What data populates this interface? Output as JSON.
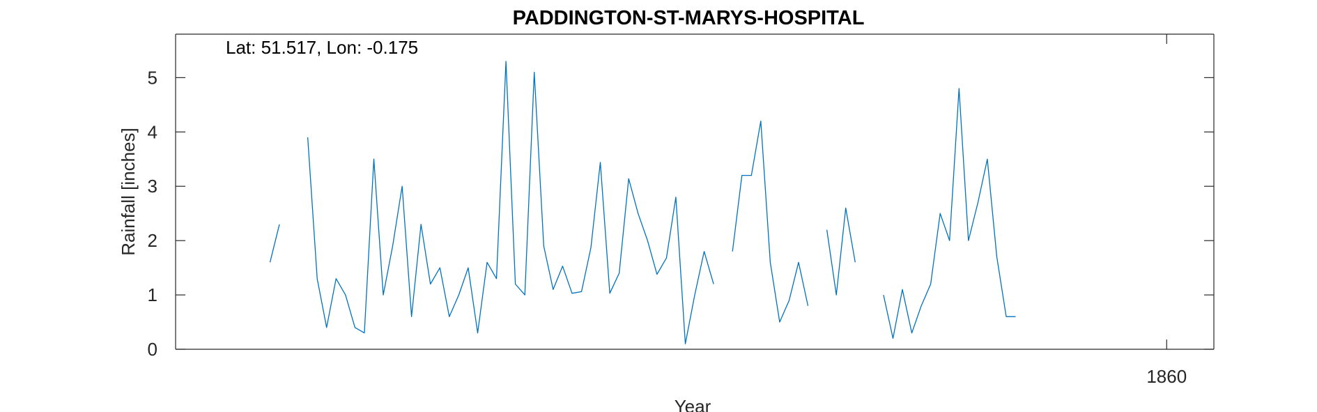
{
  "chart_data": {
    "type": "line",
    "title": "PADDINGTON-ST-MARYS-HOSPITAL",
    "annotation": "Lat: 51.517, Lon: -0.175",
    "xlabel": "Year",
    "ylabel": "Rainfall [inches]",
    "xlim": [
      1755,
      1865
    ],
    "ylim": [
      0,
      5.8
    ],
    "xticks": [
      1860
    ],
    "yticks": [
      0,
      1,
      2,
      3,
      4,
      5
    ],
    "grid": false,
    "box": true,
    "color": "#0072bd",
    "series": [
      {
        "x": [
          1765,
          1766,
          1767,
          1768,
          1769,
          1770,
          1771,
          1772,
          1773,
          1774,
          1775,
          1776,
          1777,
          1778,
          1779,
          1780,
          1781,
          1782,
          1783,
          1784,
          1785,
          1786,
          1787,
          1788,
          1789,
          1790,
          1791,
          1792,
          1793,
          1794,
          1795,
          1796,
          1797,
          1798,
          1799,
          1800,
          1801,
          1802,
          1803,
          1804,
          1805,
          1806,
          1807,
          1808,
          1809,
          1810,
          1811,
          1812,
          1813,
          1814,
          1815,
          1816,
          1817,
          1818,
          1819,
          1820,
          1821,
          1822,
          1823,
          1824,
          1825,
          1826,
          1827,
          1828,
          1829,
          1830,
          1831,
          1832,
          1833,
          1834,
          1835,
          1836,
          1837,
          1838,
          1839,
          1840,
          1841,
          1842,
          1843,
          1844,
          1845,
          1846,
          1847,
          1848,
          1849,
          1850,
          1851,
          1852,
          1853
        ],
        "y": [
          1.6,
          2.3,
          null,
          null,
          3.9,
          1.3,
          0.4,
          1.3,
          1.0,
          0.4,
          0.3,
          3.5,
          1.0,
          1.9,
          3.0,
          0.6,
          2.3,
          1.2,
          1.5,
          0.6,
          1.0,
          1.5,
          0.3,
          1.6,
          1.3,
          5.3,
          1.2,
          1.0,
          5.1,
          1.9,
          1.1,
          1.53,
          1.03,
          1.06,
          1.87,
          3.44,
          1.03,
          1.4,
          3.14,
          2.5,
          2.0,
          1.38,
          1.68,
          2.8,
          0.1,
          1.0,
          1.8,
          1.2,
          null,
          1.8,
          3.2,
          3.2,
          4.2,
          1.6,
          0.5,
          0.9,
          1.6,
          0.8,
          null,
          2.2,
          1.0,
          2.6,
          1.6,
          null,
          null,
          1.0,
          0.2,
          1.1,
          0.3,
          0.8,
          1.2,
          2.5,
          2.0,
          4.8,
          2.0,
          2.7,
          3.5,
          1.7,
          0.6,
          0.6,
          null,
          null,
          null,
          null,
          null,
          null,
          null,
          null,
          null
        ]
      }
    ]
  }
}
